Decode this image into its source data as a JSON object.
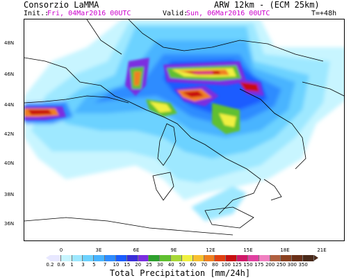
{
  "header": {
    "org": "Consorzio LaMMA",
    "model": "ARW 12km - (ECM 25km)",
    "init_label": "Init.:",
    "init_value": "Fri, 04Mar2016 00UTC",
    "valid_label": "Valid:",
    "valid_value": "Sun, 06Mar2016 00UTC",
    "lead": "T=+48h"
  },
  "map": {
    "lat_labels": [
      "48N",
      "46N",
      "44N",
      "42N",
      "40N",
      "38N",
      "36N"
    ],
    "lon_labels": [
      "0",
      "3E",
      "6E",
      "9E",
      "12E",
      "15E",
      "18E",
      "21E"
    ]
  },
  "colorbar": {
    "title": "Total Precipitation [mm/24h]",
    "labels": [
      "0.2",
      "0.6",
      "1",
      "3",
      "5",
      "7",
      "10",
      "15",
      "20",
      "25",
      "30",
      "40",
      "50",
      "60",
      "70",
      "80",
      "100",
      "125",
      "150",
      "175",
      "200",
      "250",
      "300",
      "350"
    ],
    "colors": [
      "#e8e8ff",
      "#c8f5ff",
      "#9ee8ff",
      "#6cd2ff",
      "#48b4ff",
      "#2e8cff",
      "#1a5cff",
      "#3a2ed8",
      "#7b2ee0",
      "#2ea02e",
      "#60c030",
      "#a8d838",
      "#f0f040",
      "#f8c030",
      "#f08020",
      "#e04010",
      "#c81010",
      "#d01868",
      "#e040a0",
      "#f080c0",
      "#b06040",
      "#8a4020",
      "#6a3018",
      "#4a2a1a"
    ]
  }
}
